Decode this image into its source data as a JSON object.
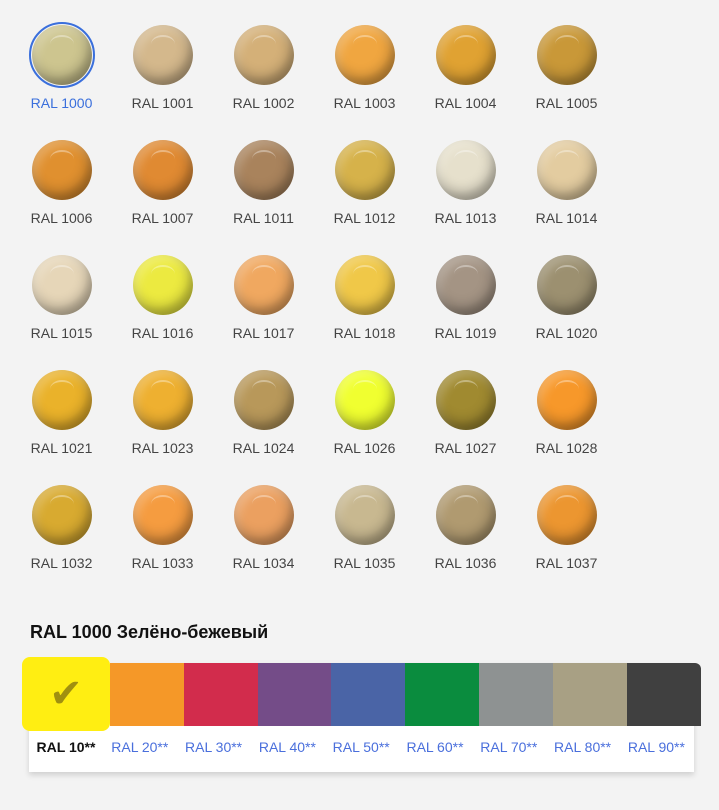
{
  "colors": [
    {
      "code": "RAL 1000",
      "hex": "#cdc58f",
      "selected": true
    },
    {
      "code": "RAL 1001",
      "hex": "#d4b88c"
    },
    {
      "code": "RAL 1002",
      "hex": "#d4b078"
    },
    {
      "code": "RAL 1003",
      "hex": "#f0a640"
    },
    {
      "code": "RAL 1004",
      "hex": "#e0a232"
    },
    {
      "code": "RAL 1005",
      "hex": "#c99838"
    },
    {
      "code": "RAL 1006",
      "hex": "#e0902f"
    },
    {
      "code": "RAL 1007",
      "hex": "#e08a32"
    },
    {
      "code": "RAL 1011",
      "hex": "#a9835c"
    },
    {
      "code": "RAL 1012",
      "hex": "#d6b24a"
    },
    {
      "code": "RAL 1013",
      "hex": "#e6e0cc"
    },
    {
      "code": "RAL 1014",
      "hex": "#e3cca0"
    },
    {
      "code": "RAL 1015",
      "hex": "#e6d6b8"
    },
    {
      "code": "RAL 1016",
      "hex": "#ecea40"
    },
    {
      "code": "RAL 1017",
      "hex": "#f0a860"
    },
    {
      "code": "RAL 1018",
      "hex": "#f0c848"
    },
    {
      "code": "RAL 1019",
      "hex": "#a49484"
    },
    {
      "code": "RAL 1020",
      "hex": "#9c9070"
    },
    {
      "code": "RAL 1021",
      "hex": "#eab22a"
    },
    {
      "code": "RAL 1023",
      "hex": "#eeb030"
    },
    {
      "code": "RAL 1024",
      "hex": "#b8985a"
    },
    {
      "code": "RAL 1026",
      "hex": "#f0ff30"
    },
    {
      "code": "RAL 1027",
      "hex": "#a08a30"
    },
    {
      "code": "RAL 1028",
      "hex": "#f7982a"
    },
    {
      "code": "RAL 1032",
      "hex": "#d8aa30"
    },
    {
      "code": "RAL 1033",
      "hex": "#f59c40"
    },
    {
      "code": "RAL 1034",
      "hex": "#eba060"
    },
    {
      "code": "RAL 1035",
      "hex": "#c8b890"
    },
    {
      "code": "RAL 1036",
      "hex": "#b09a70"
    },
    {
      "code": "RAL 1037",
      "hex": "#ec9630"
    }
  ],
  "selected_title": "RAL 1000 Зелёно-бежевый",
  "groups": [
    {
      "label": "RAL 10**",
      "hex": "#ffee12",
      "selected": true,
      "icon": "checkmark-icon",
      "mark": "✔"
    },
    {
      "label": "RAL 20**",
      "hex": "#f59828"
    },
    {
      "label": "RAL 30**",
      "hex": "#d22c4c"
    },
    {
      "label": "RAL 40**",
      "hex": "#744c88"
    },
    {
      "label": "RAL 50**",
      "hex": "#4a64a6"
    },
    {
      "label": "RAL 60**",
      "hex": "#0a8c3e"
    },
    {
      "label": "RAL 70**",
      "hex": "#8e9292"
    },
    {
      "label": "RAL 80**",
      "hex": "#a8a084"
    },
    {
      "label": "RAL 90**",
      "hex": "#404040"
    }
  ]
}
